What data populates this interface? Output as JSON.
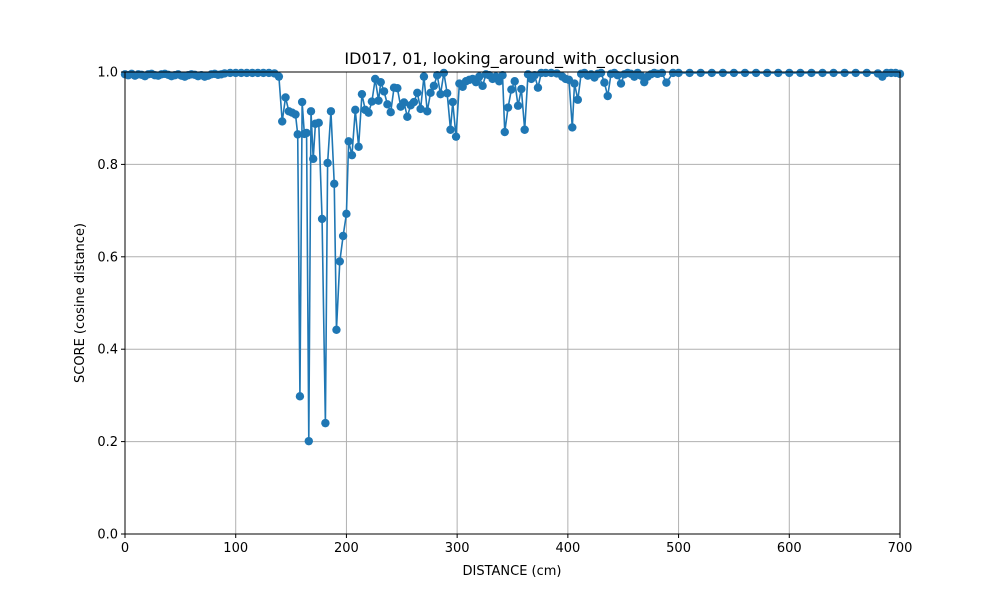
{
  "chart_data": {
    "type": "line",
    "title": "ID017, 01, looking_around_with_occlusion",
    "xlabel": "DISTANCE (cm)",
    "ylabel": "SCORE (cosine distance)",
    "xlim": [
      0,
      700
    ],
    "ylim": [
      0,
      1.0
    ],
    "xticks": [
      "0",
      "100",
      "200",
      "300",
      "400",
      "500",
      "600",
      "700"
    ],
    "yticks": [
      "0.0",
      "0.2",
      "0.4",
      "0.6",
      "0.8",
      "1.0"
    ],
    "grid": true,
    "line_color": "#1f77b4",
    "series": [
      {
        "marker": "circle",
        "points": [
          [
            0,
            0.995
          ],
          [
            3,
            0.993
          ],
          [
            6,
            0.996
          ],
          [
            9,
            0.992
          ],
          [
            12,
            0.995
          ],
          [
            15,
            0.994
          ],
          [
            18,
            0.991
          ],
          [
            21,
            0.995
          ],
          [
            24,
            0.996
          ],
          [
            27,
            0.993
          ],
          [
            30,
            0.992
          ],
          [
            33,
            0.995
          ],
          [
            36,
            0.996
          ],
          [
            39,
            0.994
          ],
          [
            42,
            0.991
          ],
          [
            45,
            0.993
          ],
          [
            48,
            0.995
          ],
          [
            51,
            0.992
          ],
          [
            54,
            0.99
          ],
          [
            57,
            0.993
          ],
          [
            60,
            0.995
          ],
          [
            63,
            0.994
          ],
          [
            66,
            0.991
          ],
          [
            69,
            0.993
          ],
          [
            72,
            0.99
          ],
          [
            75,
            0.992
          ],
          [
            78,
            0.995
          ],
          [
            81,
            0.996
          ],
          [
            84,
            0.994
          ],
          [
            87,
            0.995
          ],
          [
            90,
            0.997
          ],
          [
            95,
            0.998
          ],
          [
            100,
            0.998
          ],
          [
            105,
            0.998
          ],
          [
            110,
            0.998
          ],
          [
            115,
            0.998
          ],
          [
            120,
            0.998
          ],
          [
            125,
            0.998
          ],
          [
            130,
            0.998
          ],
          [
            135,
            0.997
          ],
          [
            139,
            0.99
          ],
          [
            142,
            0.893
          ],
          [
            145,
            0.945
          ],
          [
            148,
            0.915
          ],
          [
            151,
            0.912
          ],
          [
            154,
            0.908
          ],
          [
            156,
            0.865
          ],
          [
            158,
            0.298
          ],
          [
            160,
            0.935
          ],
          [
            162,
            0.866
          ],
          [
            164,
            0.868
          ],
          [
            166,
            0.201
          ],
          [
            168,
            0.915
          ],
          [
            170,
            0.812
          ],
          [
            172,
            0.888
          ],
          [
            175,
            0.89
          ],
          [
            178,
            0.682
          ],
          [
            181,
            0.24
          ],
          [
            183,
            0.803
          ],
          [
            186,
            0.915
          ],
          [
            189,
            0.758
          ],
          [
            191,
            0.442
          ],
          [
            194,
            0.59
          ],
          [
            197,
            0.645
          ],
          [
            200,
            0.693
          ],
          [
            202,
            0.85
          ],
          [
            205,
            0.82
          ],
          [
            208,
            0.918
          ],
          [
            211,
            0.838
          ],
          [
            214,
            0.952
          ],
          [
            217,
            0.918
          ],
          [
            220,
            0.912
          ],
          [
            223,
            0.936
          ],
          [
            226,
            0.985
          ],
          [
            229,
            0.938
          ],
          [
            231,
            0.978
          ],
          [
            234,
            0.958
          ],
          [
            237,
            0.93
          ],
          [
            240,
            0.913
          ],
          [
            243,
            0.966
          ],
          [
            246,
            0.965
          ],
          [
            249,
            0.925
          ],
          [
            252,
            0.934
          ],
          [
            255,
            0.903
          ],
          [
            258,
            0.928
          ],
          [
            261,
            0.935
          ],
          [
            264,
            0.955
          ],
          [
            267,
            0.92
          ],
          [
            270,
            0.99
          ],
          [
            273,
            0.915
          ],
          [
            276,
            0.955
          ],
          [
            279,
            0.97
          ],
          [
            282,
            0.993
          ],
          [
            285,
            0.952
          ],
          [
            288,
            0.998
          ],
          [
            291,
            0.954
          ],
          [
            294,
            0.875
          ],
          [
            296,
            0.935
          ],
          [
            299,
            0.86
          ],
          [
            302,
            0.975
          ],
          [
            305,
            0.968
          ],
          [
            308,
            0.98
          ],
          [
            311,
            0.983
          ],
          [
            314,
            0.985
          ],
          [
            317,
            0.978
          ],
          [
            320,
            0.99
          ],
          [
            323,
            0.97
          ],
          [
            326,
            0.995
          ],
          [
            329,
            0.993
          ],
          [
            332,
            0.985
          ],
          [
            335,
            0.99
          ],
          [
            338,
            0.98
          ],
          [
            341,
            0.993
          ],
          [
            343,
            0.87
          ],
          [
            346,
            0.923
          ],
          [
            349,
            0.962
          ],
          [
            352,
            0.98
          ],
          [
            355,
            0.927
          ],
          [
            358,
            0.963
          ],
          [
            361,
            0.875
          ],
          [
            364,
            0.995
          ],
          [
            367,
            0.985
          ],
          [
            370,
            0.993
          ],
          [
            373,
            0.966
          ],
          [
            376,
            0.998
          ],
          [
            380,
            0.998
          ],
          [
            385,
            0.998
          ],
          [
            390,
            0.997
          ],
          [
            395,
            0.99
          ],
          [
            398,
            0.985
          ],
          [
            401,
            0.983
          ],
          [
            404,
            0.88
          ],
          [
            406,
            0.975
          ],
          [
            409,
            0.94
          ],
          [
            412,
            0.996
          ],
          [
            415,
            0.998
          ],
          [
            418,
            0.992
          ],
          [
            421,
            0.995
          ],
          [
            424,
            0.988
          ],
          [
            427,
            0.996
          ],
          [
            430,
            0.998
          ],
          [
            433,
            0.977
          ],
          [
            436,
            0.948
          ],
          [
            439,
            0.996
          ],
          [
            442,
            0.998
          ],
          [
            445,
            0.993
          ],
          [
            448,
            0.975
          ],
          [
            451,
            0.995
          ],
          [
            454,
            0.998
          ],
          [
            457,
            0.996
          ],
          [
            460,
            0.99
          ],
          [
            463,
            0.998
          ],
          [
            466,
            0.992
          ],
          [
            469,
            0.978
          ],
          [
            472,
            0.99
          ],
          [
            475,
            0.995
          ],
          [
            478,
            0.998
          ],
          [
            481,
            0.996
          ],
          [
            485,
            0.998
          ],
          [
            489,
            0.977
          ],
          [
            495,
            0.998
          ],
          [
            500,
            0.998
          ],
          [
            510,
            0.998
          ],
          [
            520,
            0.998
          ],
          [
            530,
            0.998
          ],
          [
            540,
            0.998
          ],
          [
            550,
            0.998
          ],
          [
            560,
            0.998
          ],
          [
            570,
            0.998
          ],
          [
            580,
            0.998
          ],
          [
            590,
            0.998
          ],
          [
            600,
            0.998
          ],
          [
            610,
            0.998
          ],
          [
            620,
            0.998
          ],
          [
            630,
            0.998
          ],
          [
            640,
            0.998
          ],
          [
            650,
            0.998
          ],
          [
            660,
            0.998
          ],
          [
            670,
            0.998
          ],
          [
            680,
            0.997
          ],
          [
            684,
            0.99
          ],
          [
            688,
            0.998
          ],
          [
            692,
            0.998
          ],
          [
            696,
            0.998
          ],
          [
            700,
            0.996
          ]
        ]
      }
    ]
  }
}
